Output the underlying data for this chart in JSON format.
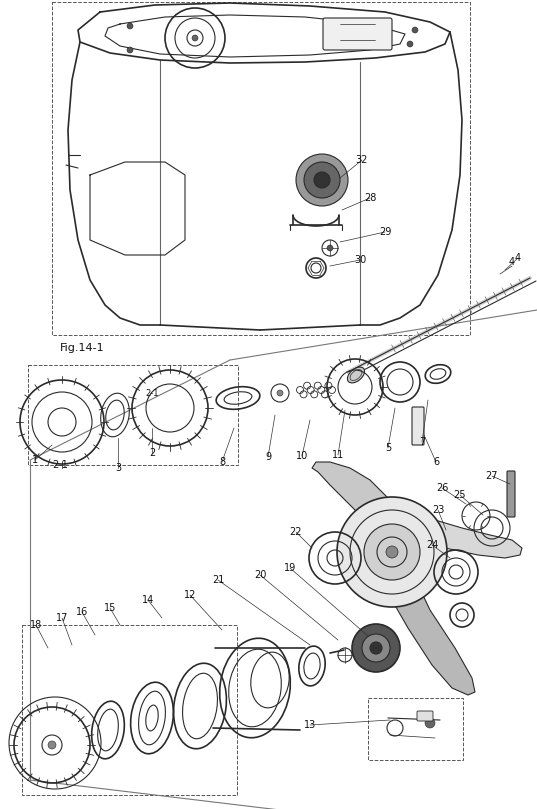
{
  "bg_color": "#ffffff",
  "line_color": "#2a2a2a",
  "fig_width": 5.37,
  "fig_height": 8.09,
  "dpi": 100
}
